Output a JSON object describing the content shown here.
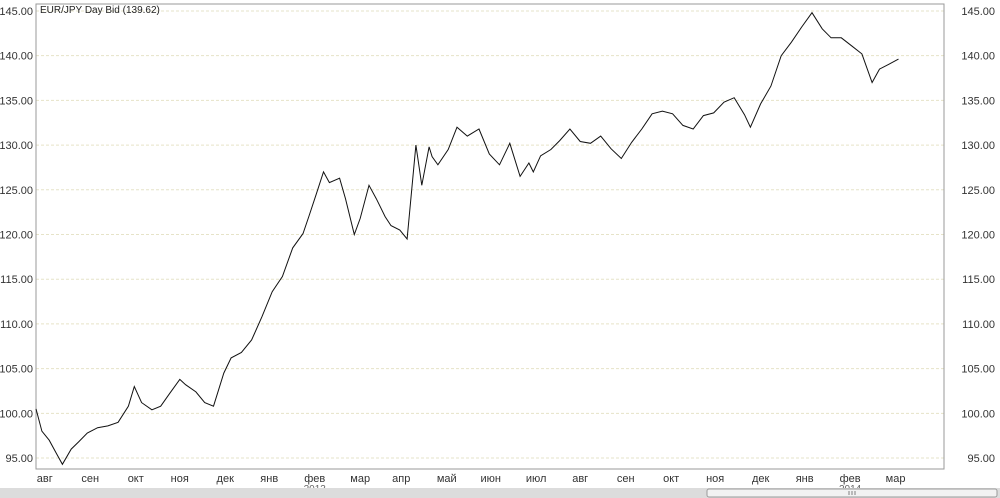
{
  "chart_data": {
    "type": "line",
    "title": "EUR/JPY Day Bid (139.62)",
    "ylim": [
      94,
      146
    ],
    "y_ticks": [
      "95.00",
      "100.00",
      "105.00",
      "110.00",
      "115.00",
      "120.00",
      "125.00",
      "130.00",
      "135.00",
      "140.00",
      "145.00"
    ],
    "x_ticks": [
      "авг",
      "сен",
      "окт",
      "ноя",
      "дек",
      "янв",
      "фев",
      "мар",
      "апр",
      "май",
      "июн",
      "июл",
      "авг",
      "сен",
      "окт",
      "ноя",
      "дек",
      "янв",
      "фев",
      "мар"
    ],
    "x_year_labels": [
      "2013",
      "2014"
    ],
    "grid": true,
    "series": [
      {
        "x": [
          "2012-07-09",
          "2012-07-13",
          "2012-07-18",
          "2012-07-23",
          "2012-07-27",
          "2012-08-02",
          "2012-08-07",
          "2012-08-13",
          "2012-08-20",
          "2012-08-27",
          "2012-09-03",
          "2012-09-10",
          "2012-09-14",
          "2012-09-19",
          "2012-09-26",
          "2012-10-02",
          "2012-10-08",
          "2012-10-15",
          "2012-10-19",
          "2012-10-26",
          "2012-11-01",
          "2012-11-07",
          "2012-11-14",
          "2012-11-19",
          "2012-11-26",
          "2012-12-03",
          "2012-12-10",
          "2012-12-17",
          "2012-12-24",
          "2012-12-31",
          "2013-01-07",
          "2013-01-11",
          "2013-01-16",
          "2013-01-21",
          "2013-01-25",
          "2013-02-01",
          "2013-02-05",
          "2013-02-11",
          "2013-02-15",
          "2013-02-21",
          "2013-02-26",
          "2013-03-04",
          "2013-03-08",
          "2013-03-14",
          "2013-03-19",
          "2013-03-25",
          "2013-03-29",
          "2013-04-03",
          "2013-04-05",
          "2013-04-09",
          "2013-04-16",
          "2013-04-22",
          "2013-04-29",
          "2013-05-07",
          "2013-05-14",
          "2013-05-21",
          "2013-05-28",
          "2013-06-04",
          "2013-06-10",
          "2013-06-13",
          "2013-06-18",
          "2013-06-25",
          "2013-07-01",
          "2013-07-08",
          "2013-07-15",
          "2013-07-22",
          "2013-07-29",
          "2013-08-05",
          "2013-08-12",
          "2013-08-19",
          "2013-08-26",
          "2013-09-02",
          "2013-09-09",
          "2013-09-16",
          "2013-09-23",
          "2013-09-30",
          "2013-10-07",
          "2013-10-14",
          "2013-10-21",
          "2013-10-28",
          "2013-11-04",
          "2013-11-08",
          "2013-11-15",
          "2013-11-22",
          "2013-11-29",
          "2013-12-06",
          "2013-12-13",
          "2013-12-20",
          "2013-12-27",
          "2014-01-02",
          "2014-01-09",
          "2014-01-16",
          "2014-01-23",
          "2014-01-30",
          "2014-02-04",
          "2014-02-10",
          "2014-02-17"
        ],
        "values": [
          100.5,
          98.0,
          97.0,
          95.5,
          94.3,
          96.0,
          96.8,
          97.8,
          98.4,
          98.6,
          99.0,
          100.8,
          103.0,
          101.2,
          100.4,
          100.8,
          102.2,
          103.8,
          103.2,
          102.4,
          101.2,
          100.8,
          104.5,
          106.2,
          106.8,
          108.2,
          110.8,
          113.6,
          115.3,
          118.5,
          120.1,
          122.0,
          124.5,
          127.0,
          125.8,
          126.3,
          124.0,
          120.0,
          121.8,
          125.5,
          124.0,
          122.0,
          121.0,
          120.5,
          119.5,
          130.0,
          125.5,
          129.8,
          128.7,
          127.8,
          129.5,
          132.0,
          131.0,
          131.8,
          129.0,
          127.8,
          130.2,
          126.5,
          128.0,
          127.0,
          128.8,
          129.5,
          130.5,
          131.8,
          130.4,
          130.2,
          131.0,
          129.6,
          128.5,
          130.3,
          131.8,
          133.5,
          133.8,
          133.5,
          132.2,
          131.8,
          133.3,
          133.6,
          134.8,
          135.3,
          133.4,
          132.0,
          134.6,
          136.6,
          140.0,
          141.5,
          143.2,
          144.8,
          143.0,
          142.0,
          142.0,
          141.1,
          140.2,
          137.0,
          138.5,
          139.0,
          139.62
        ]
      }
    ]
  }
}
